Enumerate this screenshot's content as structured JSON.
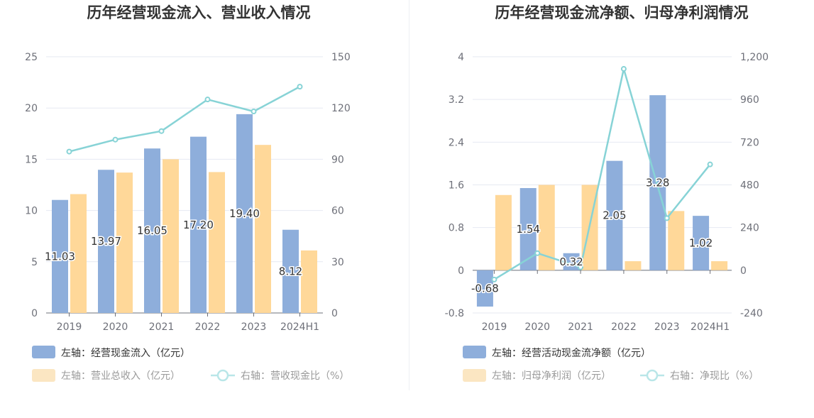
{
  "chart_data": [
    {
      "type": "bar",
      "title": "历年经营现金流入、营业收入情况",
      "categories": [
        "2019",
        "2020",
        "2021",
        "2022",
        "2023",
        "2024H1"
      ],
      "y_left": {
        "ticks": [
          "0",
          "5",
          "10",
          "15",
          "20",
          "25"
        ],
        "range": [
          0,
          25
        ]
      },
      "y_right": {
        "ticks": [
          "0",
          "30",
          "60",
          "90",
          "120",
          "150"
        ],
        "range": [
          0,
          150
        ]
      },
      "series": [
        {
          "name": "左轴：经营现金流入（亿元）",
          "kind": "bar",
          "axis": "left",
          "color": "#8eaedb",
          "values": [
            11.03,
            13.97,
            16.05,
            17.2,
            19.4,
            8.12
          ],
          "labels": [
            "11.03",
            "13.97",
            "16.05",
            "17.20",
            "19.40",
            "8.12"
          ]
        },
        {
          "name": "左轴：营业总收入（亿元）",
          "kind": "bar",
          "axis": "left",
          "color": "#ffd899",
          "values": [
            11.6,
            13.7,
            15.0,
            13.75,
            16.4,
            6.1
          ]
        },
        {
          "name": "右轴：营收现金比（%）",
          "kind": "line",
          "axis": "right",
          "color": "#87d3d6",
          "values": [
            94.5,
            101.5,
            106.5,
            125,
            118,
            132.5
          ]
        }
      ],
      "grid": true,
      "legend": "bottom"
    },
    {
      "type": "bar",
      "title": "历年经营现金流净额、归母净利润情况",
      "categories": [
        "2019",
        "2020",
        "2021",
        "2022",
        "2023",
        "2024H1"
      ],
      "y_left": {
        "ticks": [
          "-0.8",
          "0",
          "0.8",
          "1.6",
          "2.4",
          "3.2",
          "4"
        ],
        "range": [
          -0.8,
          4
        ]
      },
      "y_right": {
        "ticks": [
          "-240",
          "0",
          "240",
          "480",
          "720",
          "960",
          "1,200"
        ],
        "range": [
          -240,
          1200
        ]
      },
      "series": [
        {
          "name": "左轴：经营活动现金流净额（亿元）",
          "kind": "bar",
          "axis": "left",
          "color": "#8eaedb",
          "values": [
            -0.68,
            1.54,
            0.32,
            2.05,
            3.28,
            1.02
          ],
          "labels": [
            "-0.68",
            "1.54",
            "0.32",
            "2.05",
            "3.28",
            "1.02"
          ]
        },
        {
          "name": "左轴：归母净利润（亿元）",
          "kind": "bar",
          "axis": "left",
          "color": "#ffd899",
          "values": [
            1.41,
            1.6,
            1.6,
            0.17,
            1.11,
            0.17
          ]
        },
        {
          "name": "右轴：净现比（%）",
          "kind": "line",
          "axis": "right",
          "color": "#87d3d6",
          "values": [
            -52,
            96,
            17,
            1132,
            293,
            595
          ]
        }
      ],
      "grid": true,
      "legend": "bottom"
    }
  ]
}
